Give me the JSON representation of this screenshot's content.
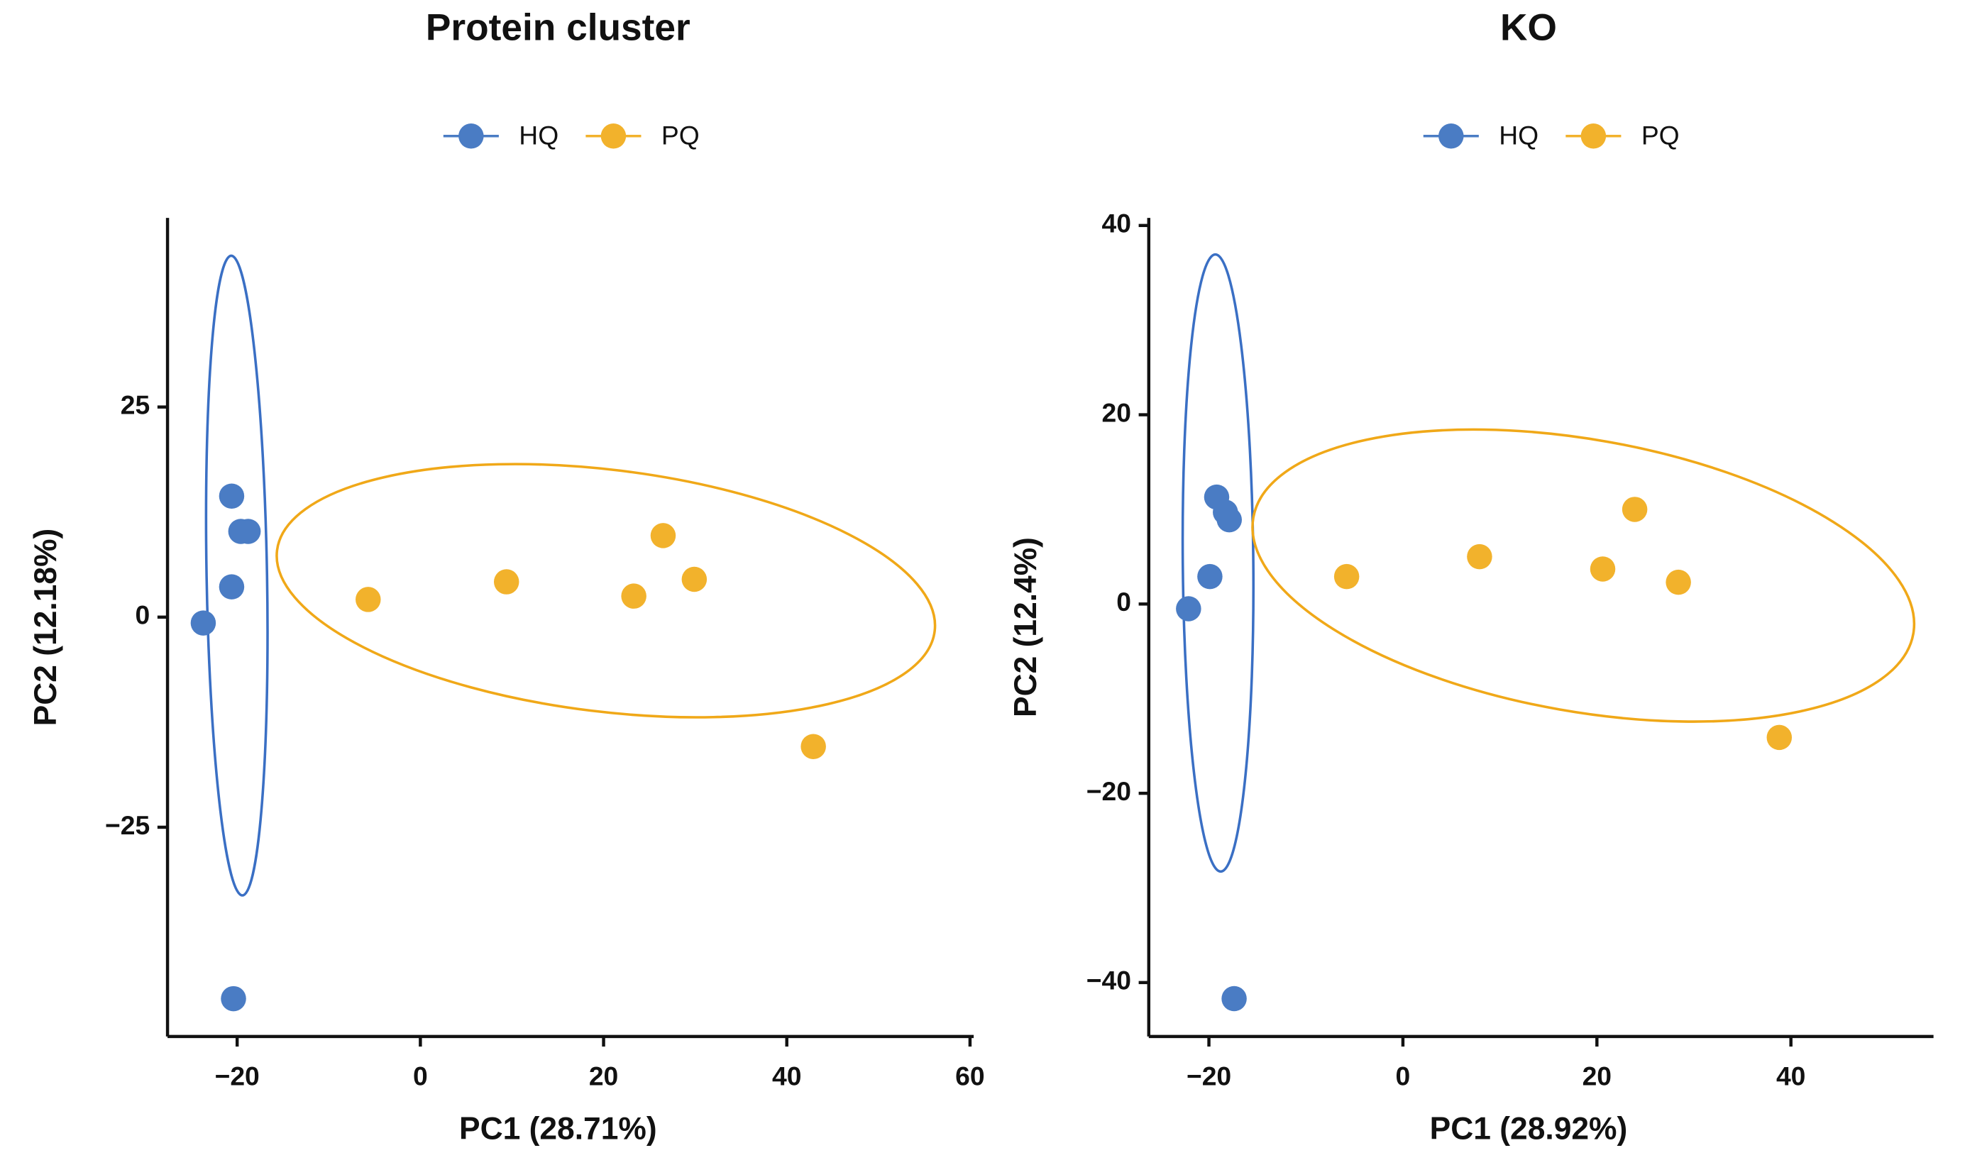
{
  "chart_data": [
    {
      "type": "scatter",
      "title": "Protein cluster",
      "x_label": "PC1 (28.71%)",
      "y_label": "PC2 (12.18%)",
      "xlim": [
        -27.6,
        60.4
      ],
      "ylim": [
        -49.9,
        47.5
      ],
      "xticks": [
        {
          "value": -20,
          "label": "−20"
        },
        0,
        20,
        40,
        60
      ],
      "yticks": [
        {
          "value": -25,
          "label": "−25"
        },
        0,
        25
      ],
      "series": [
        {
          "name": "HQ",
          "color": "#4a7cc4",
          "x": [
            -23.7,
            -20.6,
            -19.6,
            -18.8,
            -20.6,
            -20.4
          ],
          "values": [
            -0.7,
            14.4,
            10.2,
            10.2,
            3.6,
            -45.4
          ]
        },
        {
          "name": "PQ",
          "color": "#f2b22c",
          "x": [
            -5.7,
            9.4,
            23.3,
            26.5,
            29.9,
            42.9
          ],
          "values": [
            2.1,
            4.2,
            2.5,
            9.7,
            4.5,
            -15.4
          ]
        }
      ]
    },
    {
      "type": "scatter",
      "title": "KO",
      "x_label": "PC1 (28.92%)",
      "y_label": "PC2 (12.4%)",
      "xlim": [
        -26.2,
        54.7
      ],
      "ylim": [
        -45.7,
        40.8
      ],
      "xticks": [
        {
          "value": -20,
          "label": "−20"
        },
        0,
        20,
        40
      ],
      "yticks": [
        {
          "value": -40,
          "label": "−40"
        },
        {
          "value": -20,
          "label": "−20"
        },
        0,
        20,
        40
      ],
      "series": [
        {
          "name": "HQ",
          "color": "#4a7cc4",
          "x": [
            -22.1,
            -19.2,
            -18.3,
            -17.9,
            -19.9,
            -17.4
          ],
          "values": [
            -0.5,
            11.3,
            9.7,
            8.9,
            2.9,
            -41.7
          ]
        },
        {
          "name": "PQ",
          "color": "#f2b22c",
          "x": [
            -5.8,
            7.9,
            20.6,
            23.9,
            28.4,
            38.8
          ],
          "values": [
            2.9,
            5.0,
            3.7,
            10.0,
            2.3,
            -14.1
          ]
        }
      ]
    }
  ]
}
